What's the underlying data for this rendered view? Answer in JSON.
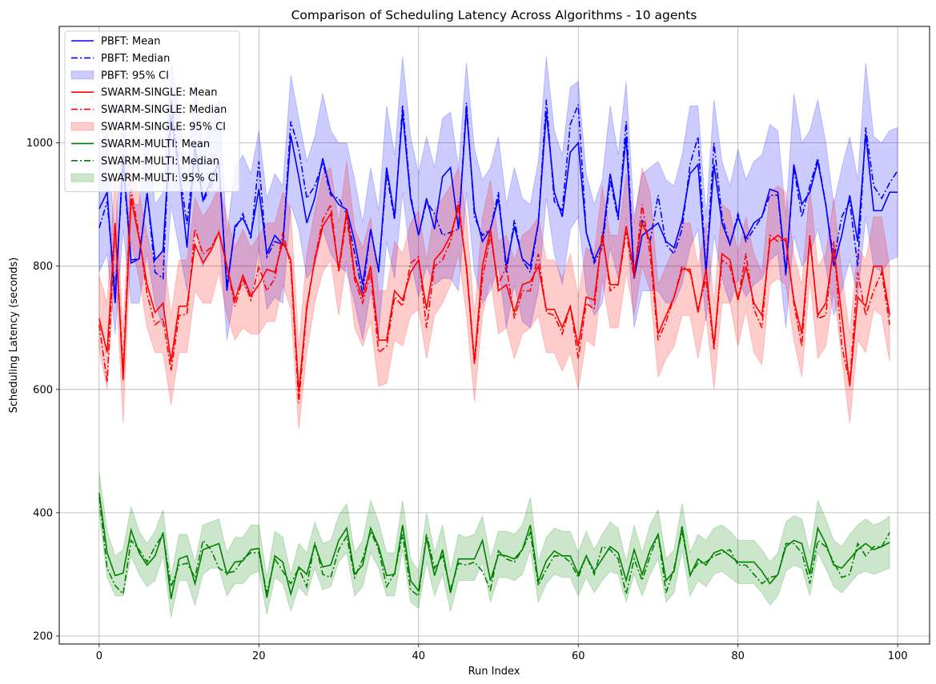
{
  "chart_data": {
    "type": "line",
    "title": "Comparison of Scheduling Latency Across Algorithms - 10 agents",
    "xlabel": "Run Index",
    "ylabel": "Scheduling Latency (seconds)",
    "xlim": [
      -5,
      104
    ],
    "ylim": [
      187,
      1189
    ],
    "xticks": [
      0,
      20,
      40,
      60,
      80,
      100
    ],
    "yticks": [
      200,
      400,
      600,
      800,
      1000
    ],
    "grid": true,
    "legend_position": "top-left",
    "series": [
      {
        "name": "PBFT",
        "color": "#0000ff",
        "legend": [
          "PBFT: Mean",
          "PBFT: Median",
          "PBFT: 95% CI"
        ],
        "mean": [
          893,
          920,
          740,
          980,
          805,
          812,
          918,
          810,
          825,
          1045,
          955,
          830,
          995,
          907,
          940,
          970,
          760,
          865,
          878,
          850,
          925,
          820,
          850,
          835,
          1012,
          945,
          870,
          910,
          975,
          920,
          900,
          892,
          840,
          770,
          860,
          792,
          960,
          880,
          1050,
          910,
          850,
          910,
          860,
          945,
          960,
          860,
          1055,
          890,
          840,
          860,
          910,
          800,
          865,
          812,
          800,
          870,
          1050,
          920,
          880,
          985,
          1000,
          855,
          810,
          840,
          950,
          880,
          1010,
          780,
          850,
          860,
          870,
          840,
          830,
          875,
          950,
          965,
          790,
          965,
          870,
          835,
          880,
          845,
          870,
          880,
          925,
          920,
          790,
          965,
          900,
          920,
          970,
          900,
          800,
          850,
          915,
          840,
          1015,
          890,
          890,
          920,
          920
        ],
        "median": [
          862,
          905,
          760,
          960,
          810,
          812,
          920,
          790,
          780,
          1070,
          960,
          868,
          990,
          905,
          930,
          965,
          770,
          860,
          885,
          845,
          970,
          815,
          840,
          835,
          1035,
          990,
          910,
          930,
          968,
          915,
          910,
          885,
          820,
          755,
          860,
          790,
          950,
          875,
          1062,
          915,
          850,
          905,
          885,
          850,
          855,
          860,
          1065,
          880,
          850,
          860,
          920,
          790,
          875,
          810,
          790,
          870,
          1070,
          905,
          890,
          1030,
          1062,
          855,
          805,
          830,
          940,
          875,
          1035,
          785,
          875,
          840,
          915,
          835,
          820,
          860,
          965,
          1010,
          790,
          1000,
          880,
          835,
          885,
          840,
          860,
          880,
          915,
          915,
          785,
          960,
          880,
          930,
          975,
          900,
          810,
          880,
          905,
          800,
          1025,
          930,
          910,
          935,
          955
        ],
        "lower": [
          790,
          820,
          690,
          860,
          740,
          740,
          820,
          740,
          700,
          900,
          830,
          760,
          870,
          800,
          830,
          860,
          680,
          760,
          770,
          750,
          830,
          730,
          750,
          740,
          900,
          860,
          780,
          800,
          860,
          820,
          800,
          790,
          740,
          680,
          760,
          690,
          840,
          780,
          920,
          810,
          750,
          800,
          770,
          780,
          780,
          760,
          920,
          790,
          740,
          760,
          800,
          700,
          770,
          710,
          700,
          760,
          910,
          820,
          770,
          860,
          880,
          760,
          720,
          740,
          830,
          780,
          880,
          700,
          760,
          760,
          760,
          740,
          740,
          770,
          830,
          860,
          710,
          850,
          780,
          740,
          780,
          750,
          770,
          780,
          810,
          820,
          700,
          850,
          800,
          820,
          860,
          800,
          720,
          760,
          810,
          750,
          880,
          800,
          790,
          810,
          815
        ],
        "upper": [
          995,
          1020,
          840,
          1080,
          900,
          900,
          1020,
          900,
          920,
          1130,
          1060,
          930,
          1100,
          1000,
          1040,
          1070,
          850,
          960,
          980,
          950,
          1020,
          910,
          950,
          930,
          1110,
          1040,
          970,
          1010,
          1080,
          1020,
          1000,
          1000,
          940,
          870,
          960,
          890,
          1060,
          980,
          1140,
          1010,
          950,
          1010,
          960,
          1040,
          1050,
          960,
          1130,
          990,
          940,
          960,
          1010,
          900,
          960,
          910,
          900,
          970,
          1140,
          1020,
          980,
          1090,
          1100,
          950,
          900,
          940,
          1060,
          980,
          1100,
          880,
          950,
          960,
          970,
          940,
          930,
          980,
          1060,
          1060,
          880,
          1070,
          970,
          930,
          990,
          940,
          970,
          980,
          1030,
          1020,
          880,
          1080,
          1000,
          1020,
          1070,
          1000,
          900,
          960,
          1010,
          940,
          1130,
          1010,
          1000,
          1020,
          1025
        ]
      },
      {
        "name": "SWARM-SINGLE",
        "color": "#ff0000",
        "legend": [
          "SWARM-SINGLE: Mean",
          "SWARM-SINGLE: Median",
          "SWARM-SINGLE: 95% CI"
        ],
        "mean": [
          715,
          660,
          870,
          615,
          910,
          845,
          770,
          725,
          740,
          645,
          735,
          735,
          835,
          805,
          825,
          855,
          800,
          745,
          785,
          752,
          770,
          795,
          790,
          840,
          810,
          595,
          735,
          810,
          865,
          885,
          795,
          890,
          785,
          750,
          800,
          680,
          680,
          760,
          745,
          790,
          810,
          730,
          810,
          825,
          850,
          895,
          800,
          645,
          800,
          860,
          760,
          770,
          725,
          770,
          775,
          800,
          730,
          730,
          700,
          735,
          670,
          750,
          745,
          850,
          770,
          770,
          865,
          790,
          870,
          840,
          690,
          720,
          750,
          795,
          795,
          725,
          795,
          670,
          820,
          810,
          745,
          800,
          740,
          720,
          840,
          850,
          840,
          745,
          690,
          845,
          720,
          740,
          830,
          720,
          605,
          750,
          735,
          800,
          800,
          720
        ],
        "median": [
          705,
          612,
          865,
          630,
          925,
          850,
          755,
          705,
          715,
          630,
          720,
          722,
          860,
          820,
          830,
          855,
          800,
          735,
          780,
          745,
          800,
          760,
          780,
          855,
          800,
          578,
          730,
          812,
          875,
          900,
          790,
          880,
          778,
          740,
          790,
          660,
          670,
          750,
          735,
          805,
          815,
          700,
          800,
          810,
          840,
          905,
          795,
          640,
          780,
          850,
          770,
          800,
          715,
          760,
          760,
          820,
          725,
          720,
          690,
          735,
          650,
          740,
          730,
          855,
          760,
          770,
          855,
          780,
          900,
          820,
          680,
          710,
          750,
          800,
          790,
          730,
          780,
          665,
          810,
          800,
          745,
          820,
          730,
          700,
          850,
          840,
          845,
          740,
          670,
          850,
          715,
          720,
          840,
          670,
          610,
          790,
          720,
          760,
          790,
          705
        ],
        "lower": [
          665,
          600,
          800,
          545,
          840,
          780,
          700,
          660,
          660,
          575,
          660,
          660,
          760,
          740,
          740,
          790,
          720,
          680,
          700,
          690,
          690,
          710,
          710,
          770,
          730,
          535,
          660,
          740,
          790,
          810,
          720,
          810,
          700,
          670,
          710,
          605,
          610,
          680,
          670,
          720,
          730,
          650,
          720,
          740,
          770,
          820,
          720,
          580,
          720,
          780,
          690,
          700,
          650,
          690,
          700,
          720,
          660,
          660,
          630,
          660,
          600,
          680,
          670,
          780,
          700,
          700,
          790,
          720,
          800,
          760,
          620,
          650,
          670,
          720,
          720,
          650,
          720,
          600,
          740,
          740,
          670,
          730,
          660,
          640,
          770,
          780,
          770,
          680,
          620,
          780,
          650,
          670,
          760,
          650,
          545,
          680,
          660,
          730,
          720,
          645
        ],
        "upper": [
          785,
          740,
          950,
          690,
          980,
          920,
          850,
          800,
          830,
          720,
          810,
          810,
          910,
          880,
          900,
          930,
          880,
          830,
          860,
          830,
          850,
          870,
          870,
          920,
          890,
          670,
          820,
          890,
          950,
          960,
          870,
          970,
          860,
          830,
          880,
          760,
          760,
          840,
          820,
          870,
          890,
          810,
          890,
          910,
          930,
          960,
          880,
          720,
          880,
          940,
          840,
          850,
          810,
          850,
          860,
          880,
          810,
          810,
          780,
          820,
          750,
          830,
          820,
          930,
          850,
          850,
          950,
          870,
          960,
          920,
          770,
          800,
          830,
          870,
          870,
          800,
          870,
          740,
          900,
          890,
          820,
          880,
          820,
          790,
          920,
          930,
          920,
          820,
          770,
          930,
          800,
          820,
          910,
          790,
          690,
          830,
          810,
          880,
          880,
          800
        ]
      },
      {
        "name": "SWARM-MULTI",
        "color": "#008000",
        "legend": [
          "SWARM-MULTI: Mean",
          "SWARM-MULTI: Median",
          "SWARM-MULTI: 95% CI"
        ],
        "mean": [
          432,
          335,
          298,
          302,
          372,
          335,
          315,
          330,
          368,
          260,
          325,
          330,
          285,
          340,
          345,
          350,
          300,
          320,
          322,
          340,
          342,
          262,
          330,
          320,
          268,
          312,
          300,
          348,
          312,
          315,
          355,
          375,
          300,
          315,
          375,
          345,
          298,
          300,
          380,
          290,
          273,
          360,
          298,
          340,
          270,
          325,
          325,
          325,
          355,
          290,
          332,
          330,
          325,
          340,
          380,
          288,
          322,
          338,
          330,
          330,
          300,
          330,
          305,
          325,
          345,
          335,
          290,
          340,
          300,
          340,
          365,
          290,
          305,
          378,
          298,
          325,
          315,
          335,
          340,
          330,
          320,
          320,
          320,
          305,
          285,
          300,
          345,
          355,
          350,
          300,
          375,
          350,
          315,
          310,
          325,
          340,
          350,
          340,
          345,
          352
        ],
        "median": [
          425,
          310,
          282,
          268,
          355,
          340,
          320,
          345,
          365,
          280,
          315,
          318,
          295,
          355,
          340,
          310,
          302,
          305,
          325,
          335,
          335,
          270,
          325,
          305,
          285,
          310,
          280,
          352,
          300,
          295,
          340,
          362,
          295,
          325,
          370,
          340,
          280,
          302,
          365,
          275,
          265,
          365,
          310,
          330,
          275,
          318,
          315,
          320,
          305,
          275,
          338,
          325,
          320,
          340,
          368,
          282,
          308,
          330,
          330,
          320,
          295,
          330,
          300,
          345,
          340,
          325,
          268,
          325,
          290,
          330,
          365,
          270,
          310,
          370,
          300,
          318,
          320,
          330,
          335,
          340,
          315,
          315,
          300,
          285,
          295,
          298,
          350,
          350,
          335,
          285,
          355,
          345,
          320,
          295,
          300,
          350,
          330,
          345,
          345,
          368
        ],
        "lower": [
          400,
          295,
          265,
          265,
          330,
          300,
          280,
          290,
          330,
          230,
          290,
          290,
          250,
          300,
          310,
          310,
          265,
          285,
          285,
          300,
          305,
          235,
          295,
          285,
          240,
          280,
          265,
          310,
          275,
          280,
          320,
          335,
          265,
          280,
          335,
          310,
          265,
          265,
          340,
          255,
          245,
          320,
          265,
          300,
          240,
          290,
          290,
          290,
          320,
          255,
          295,
          295,
          290,
          300,
          340,
          255,
          285,
          300,
          295,
          295,
          265,
          295,
          270,
          290,
          305,
          300,
          255,
          300,
          265,
          300,
          325,
          255,
          270,
          340,
          265,
          290,
          280,
          300,
          305,
          295,
          285,
          285,
          285,
          270,
          250,
          265,
          305,
          315,
          310,
          265,
          335,
          310,
          280,
          270,
          285,
          300,
          305,
          300,
          305,
          310
        ],
        "upper": [
          465,
          370,
          330,
          340,
          410,
          370,
          350,
          370,
          405,
          295,
          365,
          365,
          320,
          380,
          385,
          390,
          335,
          360,
          360,
          380,
          380,
          295,
          370,
          360,
          300,
          350,
          335,
          385,
          350,
          355,
          395,
          415,
          335,
          355,
          420,
          385,
          335,
          335,
          420,
          325,
          305,
          400,
          335,
          380,
          305,
          365,
          360,
          365,
          395,
          325,
          370,
          370,
          365,
          380,
          425,
          320,
          360,
          375,
          370,
          370,
          335,
          370,
          340,
          365,
          385,
          375,
          320,
          380,
          335,
          380,
          405,
          325,
          340,
          415,
          335,
          365,
          355,
          375,
          380,
          370,
          355,
          355,
          355,
          340,
          320,
          335,
          385,
          395,
          390,
          335,
          420,
          390,
          355,
          345,
          365,
          380,
          390,
          380,
          385,
          395
        ]
      }
    ]
  }
}
